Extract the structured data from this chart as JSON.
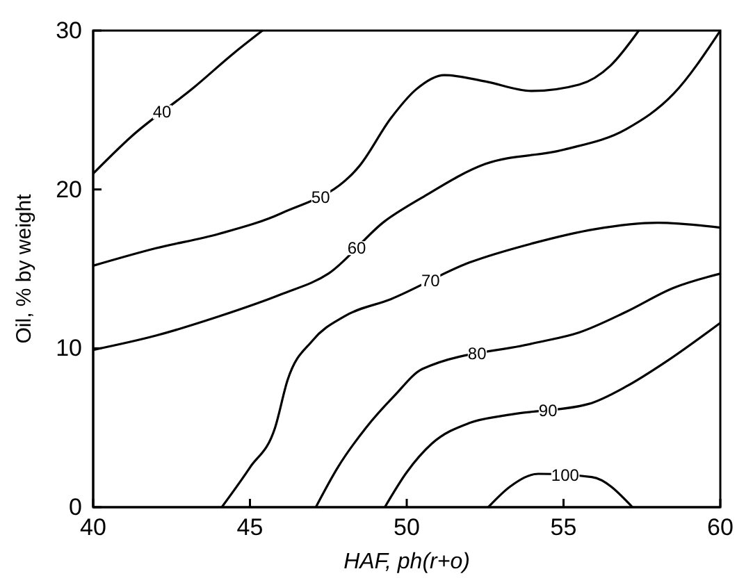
{
  "chart_data": {
    "type": "line",
    "xlabel": "HAF, ph(r+o)",
    "ylabel": "Oil, % by weight",
    "xlim": [
      40,
      60
    ],
    "ylim": [
      0,
      30
    ],
    "xticks": [
      40,
      45,
      50,
      55,
      60
    ],
    "yticks": [
      0,
      10,
      20,
      30
    ],
    "grid": false,
    "legend": false,
    "marker": "none",
    "line_style": "solid",
    "series": [
      {
        "name": "40",
        "color": "#000000",
        "x": [
          40,
          41.2,
          43.2,
          44.5,
          45.4
        ],
        "values": [
          21,
          23.3,
          26.4,
          28.6,
          30
        ]
      },
      {
        "name": "50",
        "color": "#000000",
        "x": [
          40,
          42,
          44,
          46,
          48.5,
          49.5,
          50.3,
          51.2,
          52.5,
          54,
          55.5,
          56.5,
          57.4
        ],
        "values": [
          15.2,
          16.3,
          17.2,
          18.5,
          21.5,
          24.5,
          26.3,
          27.2,
          26.8,
          26.2,
          26.6,
          27.8,
          30
        ]
      },
      {
        "name": "60",
        "color": "#000000",
        "x": [
          40,
          42,
          44,
          46,
          47.5,
          49.3,
          50.5,
          52.5,
          55,
          57,
          58.5,
          60
        ],
        "values": [
          9.9,
          10.8,
          12,
          13.4,
          14.7,
          18,
          19.5,
          21.6,
          22.5,
          23.8,
          26,
          30
        ]
      },
      {
        "name": "70",
        "color": "#000000",
        "x": [
          44.1,
          45,
          45.8,
          46.2,
          47,
          48,
          49.5,
          52,
          54,
          56,
          58,
          60
        ],
        "values": [
          0,
          2.5,
          5,
          8,
          10.5,
          12,
          13.1,
          15.4,
          16.6,
          17.5,
          17.9,
          17.6
        ]
      },
      {
        "name": "80",
        "color": "#000000",
        "x": [
          47.1,
          47.8,
          48.7,
          49.6,
          50.5,
          54,
          55.5,
          57,
          58.5,
          60
        ],
        "values": [
          0,
          2.5,
          5,
          7,
          8.7,
          10.3,
          11,
          12.3,
          13.8,
          14.7
        ]
      },
      {
        "name": "90",
        "color": "#000000",
        "x": [
          49.3,
          50,
          50.8,
          52,
          53.2,
          55.8,
          57,
          58.3,
          60
        ],
        "values": [
          0,
          2.2,
          4,
          5.3,
          5.8,
          6.5,
          7.6,
          9.2,
          11.6
        ]
      },
      {
        "name": "100",
        "color": "#000000",
        "x": [
          52.6,
          53.3,
          54.2,
          55.9,
          57.2
        ],
        "values": [
          0,
          1.3,
          2.1,
          1.9,
          0
        ]
      }
    ]
  }
}
